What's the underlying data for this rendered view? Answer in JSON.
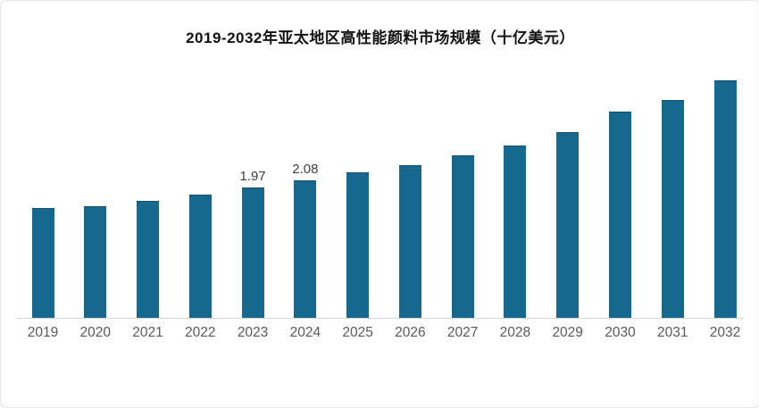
{
  "title": "2019-2032年亚太地区高性能颜料市场规模（十亿美元）",
  "chart_data": {
    "type": "bar",
    "title": "2019-2032年亚太地区高性能颜料市场规模（十亿美元）",
    "categories": [
      "2019",
      "2020",
      "2021",
      "2022",
      "2023",
      "2024",
      "2025",
      "2026",
      "2027",
      "2028",
      "2029",
      "2030",
      "2031",
      "2032"
    ],
    "values": [
      1.66,
      1.69,
      1.77,
      1.86,
      1.97,
      2.08,
      2.2,
      2.31,
      2.46,
      2.61,
      2.81,
      3.12,
      3.3,
      3.59
    ],
    "data_labels": [
      "",
      "",
      "",
      "",
      "1.97",
      "2.08",
      "",
      "",
      "",
      "",
      "",
      "",
      "",
      ""
    ],
    "xlabel": "",
    "ylabel": "",
    "unit": "十亿美元",
    "ylim": [
      0,
      4.1
    ],
    "grid": false,
    "legend": false,
    "colors": {
      "bar_fill": "#17688f",
      "bar_edge": "#0f5177",
      "axis_line": "#d9d9d9",
      "tick_label": "#595959",
      "data_label": "#404040",
      "title_text": "#111111"
    }
  }
}
